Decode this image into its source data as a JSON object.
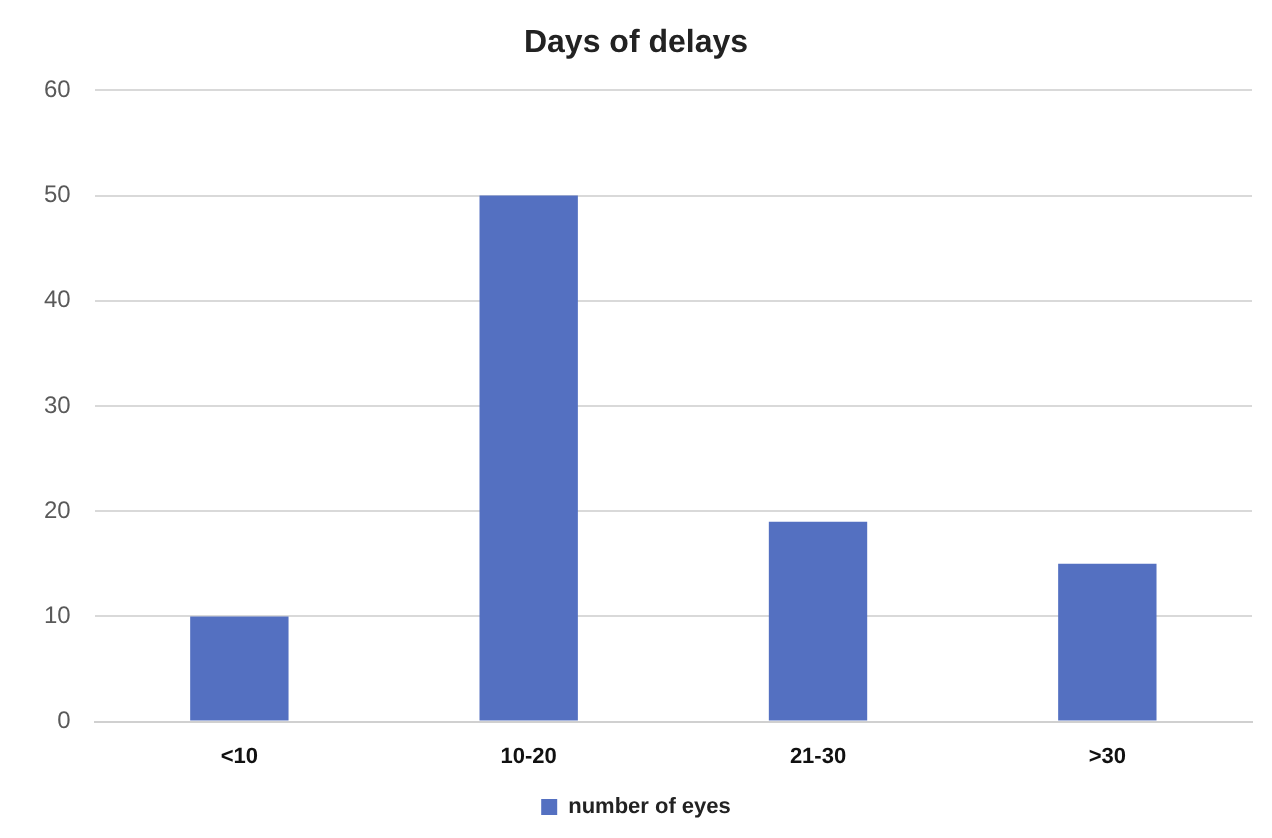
{
  "chart_data": {
    "type": "bar",
    "title": "Days of delays",
    "categories": [
      "<10",
      "10-20",
      "21-30",
      ">30"
    ],
    "series": [
      {
        "name": "number of eyes",
        "color": "#5470c1",
        "values": [
          10,
          50,
          19,
          15
        ]
      }
    ],
    "ylim": [
      0,
      60
    ],
    "yticks": [
      0,
      10,
      20,
      30,
      40,
      50,
      60
    ],
    "grid": "y",
    "legend": "bottom"
  }
}
